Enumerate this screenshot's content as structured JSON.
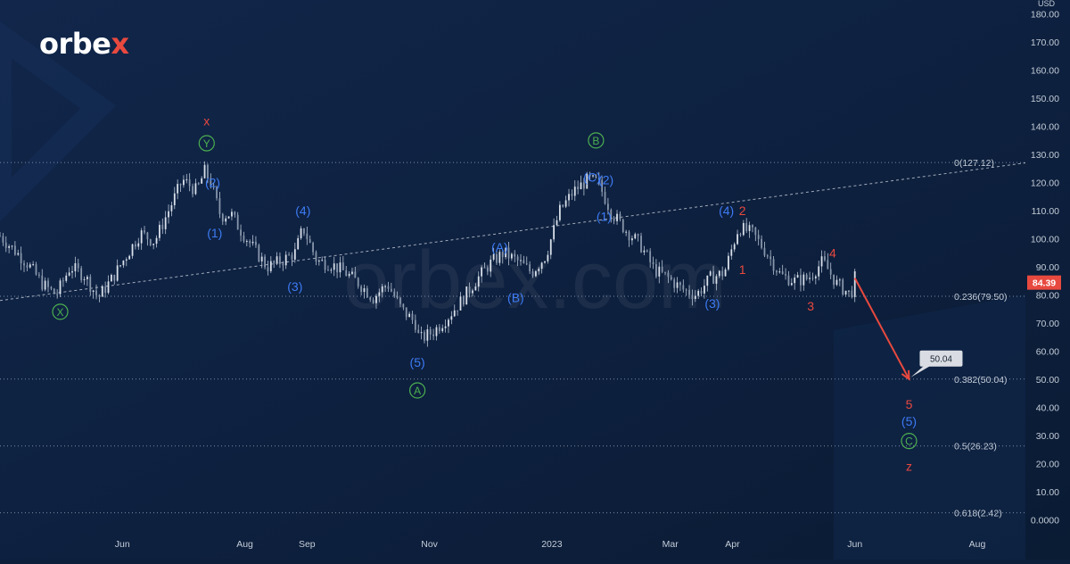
{
  "brand": {
    "name_left": "orbe",
    "name_x": "x",
    "watermark": "orbex.com"
  },
  "colors": {
    "background": "#0c1e3a",
    "candle": "#b7c3d3",
    "wave_blue": "#3d7bf5",
    "wave_red": "#e8493f",
    "wave_green": "#4caf50",
    "fib_line": "#7a8ba3",
    "trend_line": "#c5cdd8",
    "price_tag_bg": "#e8493f",
    "axis_text": "#c5cdd8"
  },
  "chart_data": {
    "type": "line",
    "title": "",
    "currency": "USD",
    "xlabel": "",
    "ylabel": "",
    "grid": false,
    "ylim": [
      -5,
      185
    ],
    "x_tick_labels": [
      "Jun",
      "Aug",
      "Sep",
      "Nov",
      "2023",
      "Mar",
      "Apr",
      "Jun",
      "Aug"
    ],
    "y_tick_labels": [
      "0.0000",
      "10.00",
      "20.00",
      "30.00",
      "40.00",
      "50.00",
      "60.00",
      "70.00",
      "80.00",
      "90.00",
      "100.00",
      "110.00",
      "120.00",
      "130.00",
      "140.00",
      "150.00",
      "160.00",
      "170.00",
      "180.00"
    ],
    "y_ticks": [
      0,
      10,
      20,
      30,
      40,
      50,
      60,
      70,
      80,
      90,
      100,
      110,
      120,
      130,
      140,
      150,
      160,
      170,
      180
    ],
    "x_ticks": [
      "2022-06-01",
      "2022-08-01",
      "2022-09-01",
      "2022-11-01",
      "2023-01-01",
      "2023-03-01",
      "2023-04-01",
      "2023-06-01",
      "2023-08-01"
    ],
    "xlim": [
      "2022-04-01",
      "2023-08-25"
    ],
    "series": [
      {
        "x": [
          "2022-04-01",
          "2022-04-08",
          "2022-04-15",
          "2022-04-22",
          "2022-04-29",
          "2022-05-06",
          "2022-05-13",
          "2022-05-20",
          "2022-05-27",
          "2022-06-03",
          "2022-06-10",
          "2022-06-17",
          "2022-06-24",
          "2022-07-01",
          "2022-07-08",
          "2022-07-12",
          "2022-07-15",
          "2022-07-20",
          "2022-07-25",
          "2022-07-29",
          "2022-08-05",
          "2022-08-12",
          "2022-08-19",
          "2022-08-26",
          "2022-08-30",
          "2022-09-06",
          "2022-09-13",
          "2022-09-20",
          "2022-09-27",
          "2022-10-04",
          "2022-10-11",
          "2022-10-18",
          "2022-10-25",
          "2022-10-27",
          "2022-11-03",
          "2022-11-10",
          "2022-11-17",
          "2022-11-24",
          "2022-12-01",
          "2022-12-08",
          "2022-12-15",
          "2022-12-22",
          "2022-12-29",
          "2023-01-05",
          "2023-01-12",
          "2023-01-19",
          "2023-01-24",
          "2023-01-31",
          "2023-02-07",
          "2023-02-14",
          "2023-02-21",
          "2023-02-28",
          "2023-03-07",
          "2023-03-14",
          "2023-03-21",
          "2023-03-28",
          "2023-04-04",
          "2023-04-11",
          "2023-04-18",
          "2023-04-25",
          "2023-05-02",
          "2023-05-09",
          "2023-05-16",
          "2023-05-23",
          "2023-05-30",
          "2023-06-01"
        ],
        "values": [
          101,
          96,
          91,
          84,
          80,
          90,
          87,
          79,
          86,
          94,
          102,
          99,
          110,
          121,
          117,
          124,
          120,
          108,
          109,
          104,
          97,
          90,
          92,
          95,
          104,
          92,
          91,
          88,
          84,
          79,
          84,
          75,
          70,
          64,
          67,
          72,
          78,
          85,
          91,
          95,
          92,
          88,
          94,
          110,
          117,
          121,
          120,
          109,
          103,
          98,
          89,
          86,
          82,
          80,
          86,
          88,
          104,
          102,
          95,
          87,
          85,
          86,
          92,
          84,
          80,
          86
        ]
      }
    ],
    "fibonacci_levels": [
      {
        "label": "0(127.12)",
        "value": 127.12
      },
      {
        "label": "0.236(79.50)",
        "value": 79.5
      },
      {
        "label": "0.382(50.04)",
        "value": 50.04
      },
      {
        "label": "0.5(26.23)",
        "value": 26.23
      },
      {
        "label": "0.618(2.42)",
        "value": 2.42
      }
    ],
    "trend_line": {
      "from": {
        "x": "2022-04-01",
        "y": 78
      },
      "to": {
        "x": "2023-08-25",
        "y": 127
      }
    },
    "forecast_arrow": {
      "from": {
        "x": "2023-06-01",
        "y": 86
      },
      "to": {
        "x": "2023-06-28",
        "y": 50.04
      }
    },
    "current_price_label": "84.39",
    "current_price": 84.39,
    "target_label": "50.04",
    "target_value": 50.04,
    "wave_labels": [
      {
        "text": "X",
        "color": "green",
        "circled": true,
        "x": "2022-05-01",
        "y": 74
      },
      {
        "text": "x",
        "color": "red",
        "circled": false,
        "x": "2022-07-13",
        "y": 142
      },
      {
        "text": "Y",
        "color": "green",
        "circled": true,
        "x": "2022-07-13",
        "y": 134
      },
      {
        "text": "(2)",
        "color": "blue",
        "circled": false,
        "x": "2022-07-16",
        "y": 120
      },
      {
        "text": "(1)",
        "color": "blue",
        "circled": false,
        "x": "2022-07-17",
        "y": 102
      },
      {
        "text": "(4)",
        "color": "blue",
        "circled": false,
        "x": "2022-08-30",
        "y": 110
      },
      {
        "text": "(3)",
        "color": "blue",
        "circled": false,
        "x": "2022-08-26",
        "y": 83
      },
      {
        "text": "(5)",
        "color": "blue",
        "circled": false,
        "x": "2022-10-26",
        "y": 56
      },
      {
        "text": "A",
        "color": "green",
        "circled": true,
        "x": "2022-10-26",
        "y": 46
      },
      {
        "text": "(A)",
        "color": "blue",
        "circled": false,
        "x": "2022-12-06",
        "y": 97
      },
      {
        "text": "(B)",
        "color": "blue",
        "circled": false,
        "x": "2022-12-14",
        "y": 79
      },
      {
        "text": "B",
        "color": "green",
        "circled": true,
        "x": "2023-01-23",
        "y": 135
      },
      {
        "text": "(C)",
        "color": "blue",
        "circled": false,
        "x": "2023-01-21",
        "y": 122
      },
      {
        "text": "(2)",
        "color": "blue",
        "circled": false,
        "x": "2023-01-28",
        "y": 121
      },
      {
        "text": "(1)",
        "color": "blue",
        "circled": false,
        "x": "2023-01-27",
        "y": 108
      },
      {
        "text": "(3)",
        "color": "blue",
        "circled": false,
        "x": "2023-03-22",
        "y": 77
      },
      {
        "text": "(4)",
        "color": "blue",
        "circled": false,
        "x": "2023-03-29",
        "y": 110
      },
      {
        "text": "2",
        "color": "red",
        "circled": false,
        "x": "2023-04-06",
        "y": 110
      },
      {
        "text": "1",
        "color": "red",
        "circled": false,
        "x": "2023-04-06",
        "y": 89
      },
      {
        "text": "3",
        "color": "red",
        "circled": false,
        "x": "2023-05-10",
        "y": 76
      },
      {
        "text": "4",
        "color": "red",
        "circled": false,
        "x": "2023-05-21",
        "y": 95
      },
      {
        "text": "5",
        "color": "red",
        "circled": false,
        "x": "2023-06-28",
        "y": 41
      },
      {
        "text": "(5)",
        "color": "blue",
        "circled": false,
        "x": "2023-06-28",
        "y": 35
      },
      {
        "text": "C",
        "color": "green",
        "circled": true,
        "x": "2023-06-28",
        "y": 28
      },
      {
        "text": "z",
        "color": "red",
        "circled": false,
        "x": "2023-06-28",
        "y": 19
      }
    ]
  }
}
